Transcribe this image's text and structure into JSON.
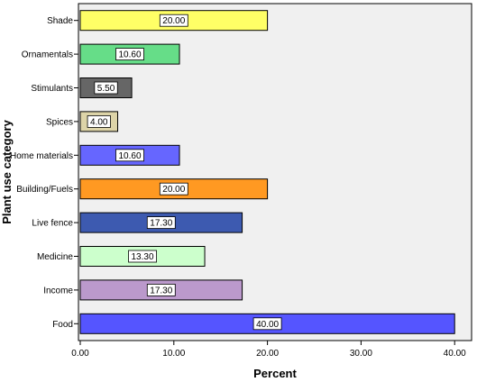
{
  "chart_data": {
    "type": "bar",
    "orientation": "horizontal",
    "categories": [
      "Shade",
      "Ornamentals",
      "Stimulants",
      "Spices",
      "Home materials",
      "Building/Fuels",
      "Live fence",
      "Medicine",
      "Income",
      "Food"
    ],
    "values": [
      20.0,
      10.6,
      5.5,
      4.0,
      10.6,
      20.0,
      17.3,
      13.3,
      17.3,
      40.0
    ],
    "data_labels": [
      "20.00",
      "10.60",
      "5.50",
      "4.00",
      "10.60",
      "20.00",
      "17.30",
      "13.30",
      "17.30",
      "40.00"
    ],
    "colors": [
      "#FFFF66",
      "#66DD88",
      "#666666",
      "#DDD4A8",
      "#6666FF",
      "#FF9922",
      "#3D5AB0",
      "#CCFFCC",
      "#BB99CC",
      "#5555FF"
    ],
    "xlabel": "Percent",
    "ylabel": "Plant use category",
    "xlim": [
      0,
      42
    ],
    "xticks": [
      0,
      10,
      20,
      30,
      40
    ],
    "xtick_labels": [
      "0.00",
      "10.00",
      "20.00",
      "30.00",
      "40.00"
    ],
    "grid": false,
    "plot_background": "#F0F0F0"
  }
}
